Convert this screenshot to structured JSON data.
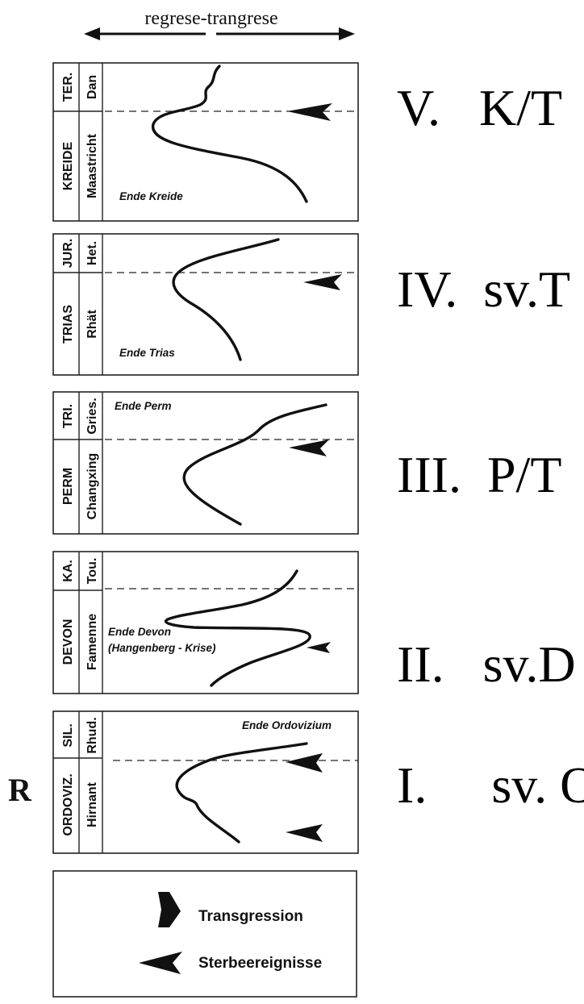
{
  "header": {
    "label": "regrese-trangrese"
  },
  "side_label": "R",
  "panels": [
    {
      "id": "V",
      "period_upper": "TER.",
      "stage_upper": "Dan",
      "period_lower": "KREIDE",
      "stage_lower": "Maastricht",
      "note_line1": "Ende Kreide",
      "note_line2": "",
      "event_label": "V.   K/T"
    },
    {
      "id": "IV",
      "period_upper": "JUR.",
      "stage_upper": "Het.",
      "period_lower": "TRIAS",
      "stage_lower": "Rhät",
      "note_line1": "Ende Trias",
      "note_line2": "",
      "event_label": "IV.  sv.T"
    },
    {
      "id": "III",
      "period_upper": "TRI.",
      "stage_upper": "Gries.",
      "period_lower": "PERM",
      "stage_lower": "Changxing",
      "note_line1": "Ende Perm",
      "note_line2": "",
      "event_label": "III.  P/T"
    },
    {
      "id": "II",
      "period_upper": "KA.",
      "stage_upper": "Tou.",
      "period_lower": "DEVON",
      "stage_lower": "Famenne",
      "note_line1": "Ende Devon",
      "note_line2": "(Hangenberg - Krise)",
      "event_label": "II.   sv.D"
    },
    {
      "id": "I",
      "period_upper": "SIL.",
      "stage_upper": "Rhud.",
      "period_lower": "ORDOVIZ.",
      "stage_lower": "Hirnant",
      "note_line1": "Ende Ordovizium",
      "note_line2": "",
      "event_label": "I.     sv. O"
    }
  ],
  "legend": {
    "transgression_label": "Transgression",
    "extinction_label": "Sterbeereignisse"
  }
}
